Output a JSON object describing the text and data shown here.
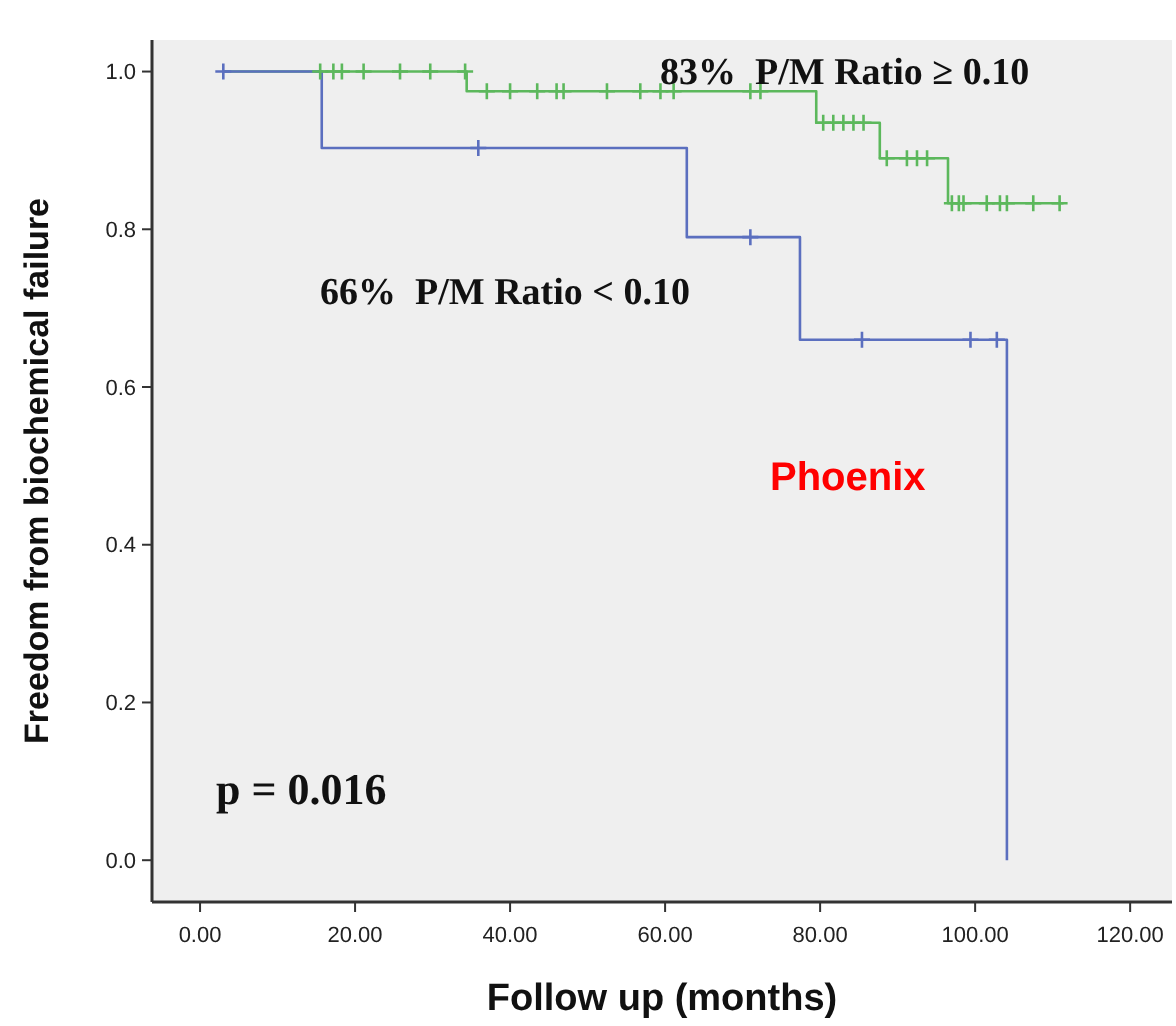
{
  "chart_data": {
    "type": "step",
    "xlabel": "Follow up (months)",
    "ylabel": "Freedom from biochemical failure",
    "xlim": [
      -6.2,
      125.4
    ],
    "ylim": [
      -0.053,
      1.04
    ],
    "xticks": [
      {
        "value": 0,
        "label": "0.00"
      },
      {
        "value": 20,
        "label": "20.00"
      },
      {
        "value": 40,
        "label": "40.00"
      },
      {
        "value": 60,
        "label": "60.00"
      },
      {
        "value": 80,
        "label": "80.00"
      },
      {
        "value": 100,
        "label": "100.00"
      },
      {
        "value": 120,
        "label": "120.00"
      }
    ],
    "yticks": [
      {
        "value": 0,
        "label": "0.0"
      },
      {
        "value": 0.2,
        "label": "0.2"
      },
      {
        "value": 0.4,
        "label": "0.4"
      },
      {
        "value": 0.6,
        "label": "0.6"
      },
      {
        "value": 0.8,
        "label": "0.8"
      },
      {
        "value": 1,
        "label": "1.0"
      }
    ],
    "grid": false,
    "series": [
      {
        "name": "83%  P/M Ratio ≥ 0.10",
        "color": "#5cb85c",
        "x": [
          3,
          34.4,
          79.5,
          87.7,
          96.5,
          111.4
        ],
        "values": [
          1,
          0.975,
          0.935,
          0.89,
          0.833,
          0.833
        ]
      },
      {
        "name": "66%  P/M Ratio < 0.10",
        "color": "#5b6fbf",
        "x": [
          3,
          15.7,
          62.8,
          77.4,
          104.1
        ],
        "values": [
          1,
          0.903,
          0.79,
          0.66,
          0
        ]
      },
      {
        "type": "scatter",
        "marker": "cross",
        "color": "#5cb85c",
        "x": [
          15.5,
          17.2,
          18.3,
          21.1,
          25.8,
          29.7,
          34.2,
          37,
          40,
          43.5,
          46,
          46.9,
          52.5,
          56.8,
          59.4,
          61.1,
          71,
          72.3,
          80.4,
          81.7,
          83,
          84.3,
          85.6,
          88.6,
          91.2,
          92.5,
          93.8,
          97,
          97.9,
          98.5,
          101.5,
          103.2,
          104.1,
          107.5,
          110.9
        ],
        "values": [
          1,
          1,
          1,
          1,
          1,
          1,
          1,
          0.975,
          0.975,
          0.975,
          0.975,
          0.975,
          0.975,
          0.975,
          0.975,
          0.975,
          0.975,
          0.975,
          0.935,
          0.935,
          0.935,
          0.935,
          0.935,
          0.89,
          0.89,
          0.89,
          0.89,
          0.833,
          0.833,
          0.833,
          0.833,
          0.833,
          0.833,
          0.833,
          0.833
        ]
      },
      {
        "type": "scatter",
        "marker": "cross",
        "color": "#5b6fbf",
        "x": [
          3,
          35.9,
          71,
          85.4,
          99.4,
          102.8
        ],
        "values": [
          1,
          0.903,
          0.79,
          0.66,
          0.66,
          0.66
        ]
      }
    ],
    "annotations": [
      "p = 0.016",
      "Phoenix"
    ]
  }
}
